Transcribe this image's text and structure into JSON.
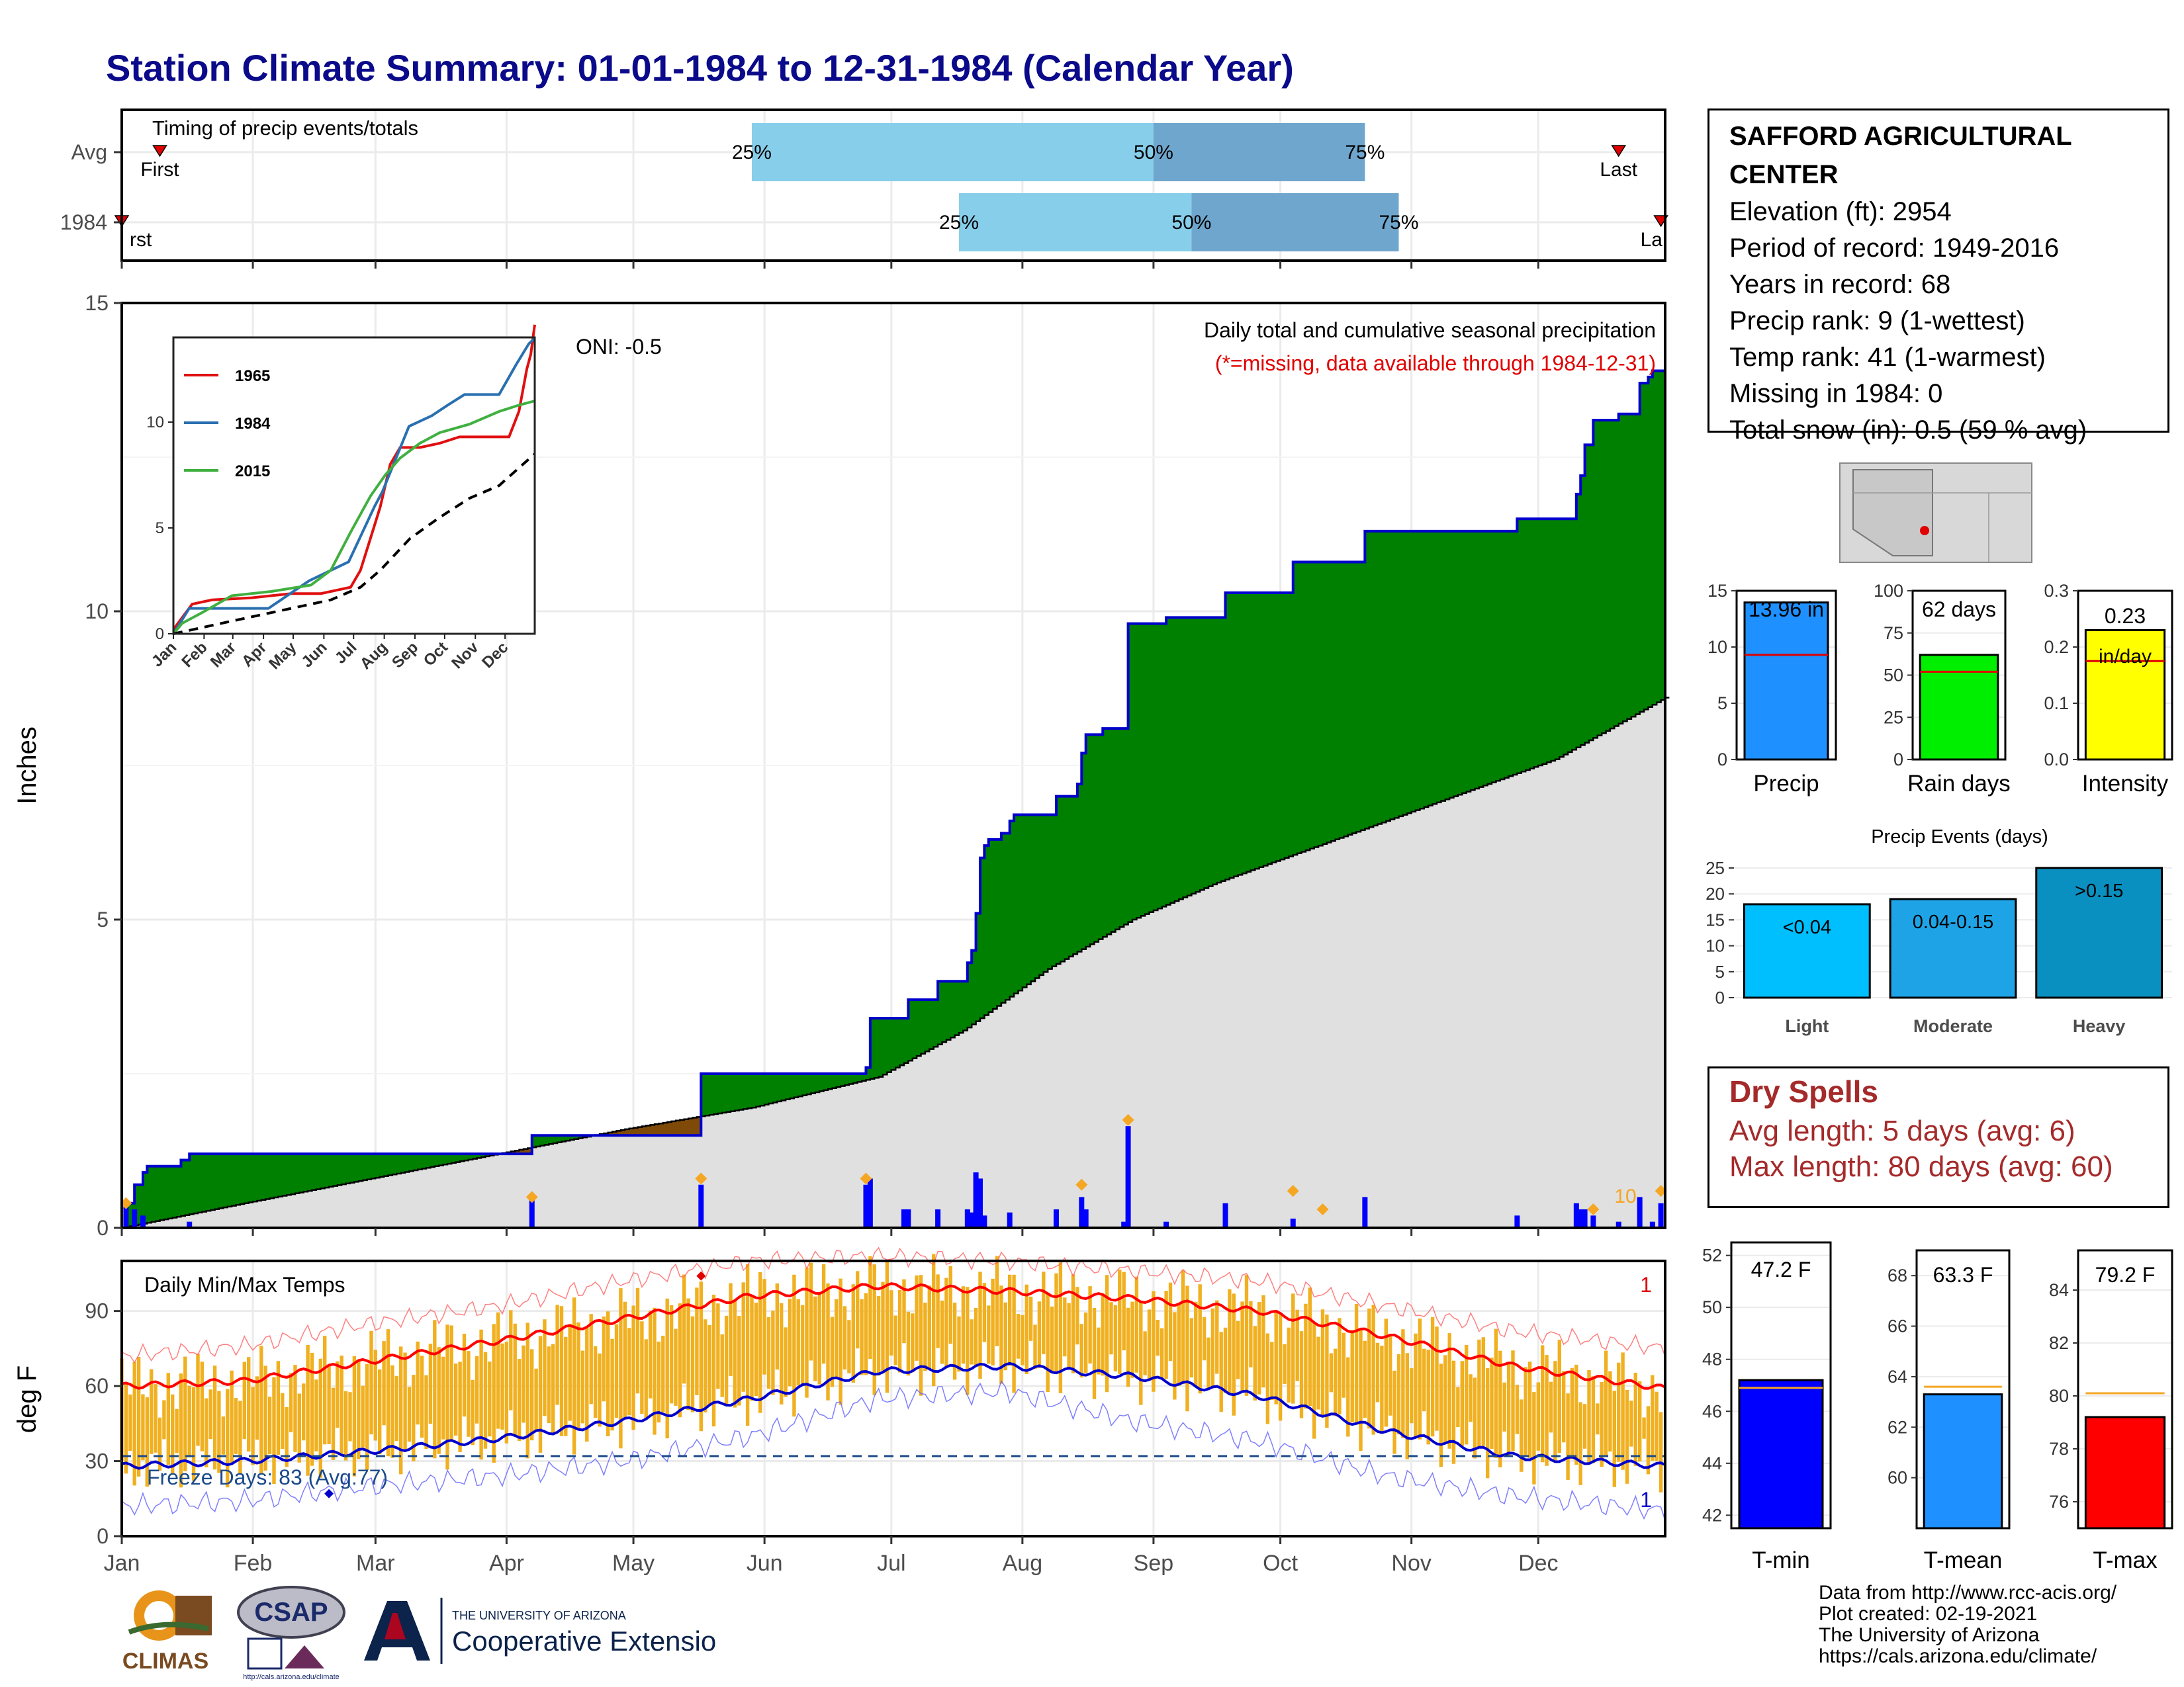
{
  "title": "Station Climate Summary: 01-01-1984 to 12-31-1984 (Calendar Year)",
  "station": {
    "name": "SAFFORD AGRICULTURAL CENTER",
    "lines": [
      "Elevation (ft): 2954",
      "Period of record: 1949-2016",
      "Years in record: 68",
      "Precip rank: 9 (1-wettest)",
      "Temp rank: 41 (1-warmest)",
      "Missing in 1984: 0",
      "Total snow (in): 0.5 (59 % avg)"
    ]
  },
  "dry_spells": {
    "title": "Dry Spells",
    "avg_length": "Avg length: 5 days (avg: 6)",
    "max_length": "Max length: 80 days (avg: 60)"
  },
  "credits": [
    "Data from http://www.rcc-acis.org/",
    "Plot created: 02-19-2021",
    "The University of Arizona",
    "https://cals.arizona.edu/climate/"
  ],
  "logos": {
    "climas": "CLIMAS",
    "csap": "CSAP",
    "csap_url": "http://cals.arizona.edu/climate",
    "ua_small": "THE UNIVERSITY OF ARIZONA",
    "ua_big": "Cooperative Extension"
  },
  "colors": {
    "title": "#0a0a8a",
    "cum_precip_above": "#008000",
    "cum_precip_below": "#7f4a08",
    "avg_cum": "#e0e0e0",
    "daily_bar": "#0000ff",
    "quartile_light": "#87ceeb",
    "quartile_dark": "#6fa6cd",
    "temp_bar": "#f0b020",
    "tmax_avg": "#ff0000",
    "tmin_avg": "#0000cc",
    "dry_spell_text": "#a52a2a"
  },
  "chart_data": [
    {
      "id": "timing",
      "type": "bar",
      "title": "Timing of precip events/totals",
      "rows": [
        {
          "label": "Avg",
          "first_day": 10,
          "q25_day": 150,
          "q50_day": 245,
          "q75_day": 295,
          "last_day": 355
        },
        {
          "label": "1984",
          "first_day": 1,
          "q25_day": 199,
          "q50_day": 254,
          "q75_day": 303,
          "last_day": 365
        }
      ],
      "labels": {
        "first": "First",
        "last": "Last",
        "q25": "25%",
        "q50": "50%",
        "q75": "75%",
        "first_clipped": "rst",
        "last_clipped": "La"
      }
    },
    {
      "id": "cumulative",
      "type": "area",
      "title": "Daily total and cumulative seasonal precipitation",
      "subtitle": "(*=missing, data available through 1984-12-31)",
      "annotation": "ONI: -0.5",
      "ylabel": "Inches",
      "ylim": [
        0,
        15
      ],
      "yticks": [
        0,
        5,
        10,
        15
      ],
      "xlim": [
        1,
        366
      ],
      "extreme_count_label": "10",
      "cum_1984_steps": [
        [
          1,
          0
        ],
        [
          2,
          0.4
        ],
        [
          4,
          0.7
        ],
        [
          6,
          0.9
        ],
        [
          7,
          1.0
        ],
        [
          15,
          1.1
        ],
        [
          17,
          1.2
        ],
        [
          97,
          1.2
        ],
        [
          98,
          1.5
        ],
        [
          137,
          1.5
        ],
        [
          138,
          2.5
        ],
        [
          176,
          2.5
        ],
        [
          177,
          2.6
        ],
        [
          178,
          3.4
        ],
        [
          186,
          3.4
        ],
        [
          187,
          3.7
        ],
        [
          193,
          3.7
        ],
        [
          194,
          4.0
        ],
        [
          200,
          4.0
        ],
        [
          201,
          4.3
        ],
        [
          202,
          4.5
        ],
        [
          203,
          5.1
        ],
        [
          204,
          6.0
        ],
        [
          205,
          6.2
        ],
        [
          206,
          6.3
        ],
        [
          209,
          6.4
        ],
        [
          211,
          6.6
        ],
        [
          212,
          6.7
        ],
        [
          221,
          6.7
        ],
        [
          222,
          7.0
        ],
        [
          227,
          7.2
        ],
        [
          228,
          7.7
        ],
        [
          229,
          8.0
        ],
        [
          233,
          8.1
        ],
        [
          238,
          8.1
        ],
        [
          239,
          9.8
        ],
        [
          247,
          9.8
        ],
        [
          248,
          9.9
        ],
        [
          261,
          9.9
        ],
        [
          262,
          10.3
        ],
        [
          277,
          10.3
        ],
        [
          278,
          10.8
        ],
        [
          294,
          10.8
        ],
        [
          295,
          11.3
        ],
        [
          330,
          11.3
        ],
        [
          331,
          11.5
        ],
        [
          344,
          11.5
        ],
        [
          345,
          11.9
        ],
        [
          346,
          12.2
        ],
        [
          347,
          12.7
        ],
        [
          349,
          13.1
        ],
        [
          354,
          13.1
        ],
        [
          355,
          13.2
        ],
        [
          359,
          13.2
        ],
        [
          360,
          13.7
        ],
        [
          362,
          13.8
        ],
        [
          363,
          13.9
        ],
        [
          366,
          13.96
        ]
      ],
      "avg_cum": [
        [
          1,
          0
        ],
        [
          30,
          0.4
        ],
        [
          60,
          0.8
        ],
        [
          90,
          1.2
        ],
        [
          120,
          1.6
        ],
        [
          150,
          1.95
        ],
        [
          180,
          2.45
        ],
        [
          200,
          3.2
        ],
        [
          220,
          4.2
        ],
        [
          240,
          5.0
        ],
        [
          260,
          5.6
        ],
        [
          280,
          6.1
        ],
        [
          300,
          6.6
        ],
        [
          320,
          7.1
        ],
        [
          340,
          7.6
        ],
        [
          366,
          8.6
        ]
      ],
      "daily_bars": [
        [
          2,
          0.35
        ],
        [
          4,
          0.3
        ],
        [
          6,
          0.2
        ],
        [
          17,
          0.1
        ],
        [
          98,
          0.5
        ],
        [
          138,
          0.7
        ],
        [
          177,
          0.7
        ],
        [
          178,
          0.8
        ],
        [
          186,
          0.3
        ],
        [
          187,
          0.3
        ],
        [
          194,
          0.3
        ],
        [
          201,
          0.3
        ],
        [
          202,
          0.25
        ],
        [
          203,
          0.9
        ],
        [
          204,
          0.8
        ],
        [
          205,
          0.2
        ],
        [
          211,
          0.25
        ],
        [
          222,
          0.3
        ],
        [
          228,
          0.5
        ],
        [
          229,
          0.3
        ],
        [
          238,
          0.1
        ],
        [
          239,
          1.65
        ],
        [
          248,
          0.1
        ],
        [
          262,
          0.4
        ],
        [
          278,
          0.15
        ],
        [
          295,
          0.5
        ],
        [
          331,
          0.2
        ],
        [
          345,
          0.4
        ],
        [
          346,
          0.3
        ],
        [
          347,
          0.3
        ],
        [
          349,
          0.2
        ],
        [
          355,
          0.1
        ],
        [
          360,
          0.5
        ],
        [
          363,
          0.1
        ],
        [
          365,
          0.4
        ]
      ],
      "extreme_markers": [
        [
          2,
          0.4
        ],
        [
          98,
          0.5
        ],
        [
          138,
          0.8
        ],
        [
          177,
          0.8
        ],
        [
          228,
          0.7
        ],
        [
          239,
          1.75
        ],
        [
          278,
          0.6
        ],
        [
          285,
          0.3
        ],
        [
          349,
          0.3
        ],
        [
          365,
          0.6
        ]
      ]
    },
    {
      "id": "inset",
      "type": "line",
      "ylim": [
        0,
        14
      ],
      "yticks": [
        0,
        5,
        10
      ],
      "months": [
        "Jan",
        "Feb",
        "Mar",
        "Apr",
        "May",
        "Jun",
        "Jul",
        "Aug",
        "Sep",
        "Oct",
        "Nov",
        "Dec"
      ],
      "series": [
        {
          "name": "1965",
          "color": "#e01010",
          "points": [
            [
              1,
              0.2
            ],
            [
              20,
              1.4
            ],
            [
              40,
              1.6
            ],
            [
              80,
              1.7
            ],
            [
              120,
              1.9
            ],
            [
              150,
              1.9
            ],
            [
              180,
              2.2
            ],
            [
              190,
              3.0
            ],
            [
              200,
              4.5
            ],
            [
              210,
              6.0
            ],
            [
              220,
              8.0
            ],
            [
              230,
              8.8
            ],
            [
              250,
              8.8
            ],
            [
              270,
              9.0
            ],
            [
              290,
              9.3
            ],
            [
              320,
              9.3
            ],
            [
              340,
              9.3
            ],
            [
              350,
              10.5
            ],
            [
              358,
              12.5
            ],
            [
              362,
              13.2
            ],
            [
              366,
              14.6
            ]
          ]
        },
        {
          "name": "1984",
          "color": "#2a70b0",
          "points": [
            [
              1,
              0
            ],
            [
              17,
              1.2
            ],
            [
              97,
              1.2
            ],
            [
              138,
              2.5
            ],
            [
              178,
              3.4
            ],
            [
              204,
              6.0
            ],
            [
              212,
              6.7
            ],
            [
              239,
              9.8
            ],
            [
              262,
              10.3
            ],
            [
              278,
              10.8
            ],
            [
              295,
              11.3
            ],
            [
              330,
              11.3
            ],
            [
              347,
              12.7
            ],
            [
              360,
              13.7
            ],
            [
              366,
              13.96
            ]
          ]
        },
        {
          "name": "2015",
          "color": "#40b040",
          "points": [
            [
              1,
              0
            ],
            [
              10,
              0.5
            ],
            [
              30,
              1.0
            ],
            [
              60,
              1.8
            ],
            [
              100,
              2.0
            ],
            [
              140,
              2.3
            ],
            [
              160,
              3.0
            ],
            [
              180,
              4.8
            ],
            [
              200,
              6.5
            ],
            [
              215,
              7.5
            ],
            [
              230,
              8.3
            ],
            [
              250,
              9.0
            ],
            [
              270,
              9.5
            ],
            [
              300,
              9.9
            ],
            [
              330,
              10.5
            ],
            [
              350,
              10.8
            ],
            [
              366,
              11.0
            ]
          ]
        }
      ],
      "avg": [
        [
          1,
          0
        ],
        [
          60,
          0.6
        ],
        [
          120,
          1.2
        ],
        [
          160,
          1.6
        ],
        [
          190,
          2.2
        ],
        [
          210,
          3.0
        ],
        [
          240,
          4.5
        ],
        [
          270,
          5.5
        ],
        [
          300,
          6.4
        ],
        [
          330,
          7.0
        ],
        [
          366,
          8.5
        ]
      ]
    },
    {
      "id": "bars_precip",
      "type": "bar",
      "xlabel": "Precip",
      "value_label": "13.96 in",
      "value": 13.96,
      "avg": 9.3,
      "ylim": [
        0,
        15
      ],
      "yticks": [
        0,
        5,
        10,
        15
      ]
    },
    {
      "id": "bars_raindays",
      "type": "bar",
      "xlabel": "Rain days",
      "value_label": "62 days",
      "value": 62,
      "avg": 52,
      "ylim": [
        0,
        100
      ],
      "yticks": [
        0,
        25,
        50,
        75,
        100
      ]
    },
    {
      "id": "bars_intensity",
      "type": "bar",
      "xlabel": "Intensity",
      "value_label": "0.23",
      "value_unit": "in/day",
      "value": 0.23,
      "avg": 0.175,
      "ylim": [
        0,
        0.3
      ],
      "yticks": [
        0.0,
        0.1,
        0.2,
        0.3
      ]
    },
    {
      "id": "precip_events",
      "type": "bar",
      "title": "Precip Events (days)",
      "categories": [
        "Light",
        "Moderate",
        "Heavy"
      ],
      "bar_labels": [
        "<0.04",
        "0.04-0.15",
        ">0.15"
      ],
      "values": [
        18,
        19,
        25
      ],
      "ylim": [
        0,
        25
      ],
      "yticks": [
        0,
        5,
        10,
        15,
        20,
        25
      ]
    },
    {
      "id": "temps",
      "type": "bar",
      "title": "Daily Min/Max Temps",
      "ylabel": "deg F",
      "ylim": [
        0,
        110
      ],
      "yticks": [
        0,
        30,
        60,
        90
      ],
      "freeze_label": "Freeze Days: 83 (Avg:77)",
      "freeze_line": 32,
      "record_high_count": "1",
      "record_low_count": "1",
      "months": [
        "Jan",
        "Feb",
        "Mar",
        "Apr",
        "May",
        "Jun",
        "Jul",
        "Aug",
        "Sep",
        "Oct",
        "Nov",
        "Dec"
      ],
      "avg_tmax": [
        [
          1,
          60
        ],
        [
          30,
          62
        ],
        [
          60,
          70
        ],
        [
          90,
          78
        ],
        [
          120,
          87
        ],
        [
          150,
          96
        ],
        [
          180,
          100
        ],
        [
          210,
          98
        ],
        [
          240,
          95
        ],
        [
          270,
          90
        ],
        [
          300,
          80
        ],
        [
          330,
          68
        ],
        [
          366,
          59
        ]
      ],
      "avg_tmin": [
        [
          1,
          28
        ],
        [
          30,
          30
        ],
        [
          60,
          34
        ],
        [
          90,
          39
        ],
        [
          120,
          46
        ],
        [
          150,
          55
        ],
        [
          180,
          66
        ],
        [
          210,
          68
        ],
        [
          240,
          64
        ],
        [
          270,
          56
        ],
        [
          300,
          42
        ],
        [
          330,
          32
        ],
        [
          366,
          28
        ]
      ],
      "rec_max": [
        [
          1,
          72
        ],
        [
          30,
          76
        ],
        [
          60,
          85
        ],
        [
          90,
          92
        ],
        [
          120,
          102
        ],
        [
          150,
          110
        ],
        [
          180,
          112
        ],
        [
          210,
          110
        ],
        [
          240,
          106
        ],
        [
          270,
          102
        ],
        [
          300,
          92
        ],
        [
          330,
          82
        ],
        [
          366,
          75
        ]
      ],
      "rec_min": [
        [
          1,
          12
        ],
        [
          30,
          14
        ],
        [
          60,
          20
        ],
        [
          90,
          24
        ],
        [
          120,
          30
        ],
        [
          150,
          40
        ],
        [
          180,
          55
        ],
        [
          210,
          58
        ],
        [
          240,
          46
        ],
        [
          270,
          38
        ],
        [
          300,
          24
        ],
        [
          330,
          16
        ],
        [
          366,
          10
        ]
      ]
    },
    {
      "id": "bars_tmin",
      "type": "bar",
      "xlabel": "T-min",
      "value_label": "47.2 F",
      "value": 47.2,
      "avg": 46.9,
      "ylim": [
        41.5,
        52.5
      ],
      "yticks": [
        42,
        44,
        46,
        48,
        50,
        52
      ]
    },
    {
      "id": "bars_tmean",
      "type": "bar",
      "xlabel": "T-mean",
      "value_label": "63.3 F",
      "value": 63.3,
      "avg": 63.6,
      "ylim": [
        58,
        69
      ],
      "yticks": [
        60,
        62,
        64,
        66,
        68
      ]
    },
    {
      "id": "bars_tmax",
      "type": "bar",
      "xlabel": "T-max",
      "value_label": "79.2 F",
      "value": 79.2,
      "avg": 80.1,
      "ylim": [
        75,
        85.5
      ],
      "yticks": [
        76,
        78,
        80,
        82,
        84
      ]
    }
  ]
}
